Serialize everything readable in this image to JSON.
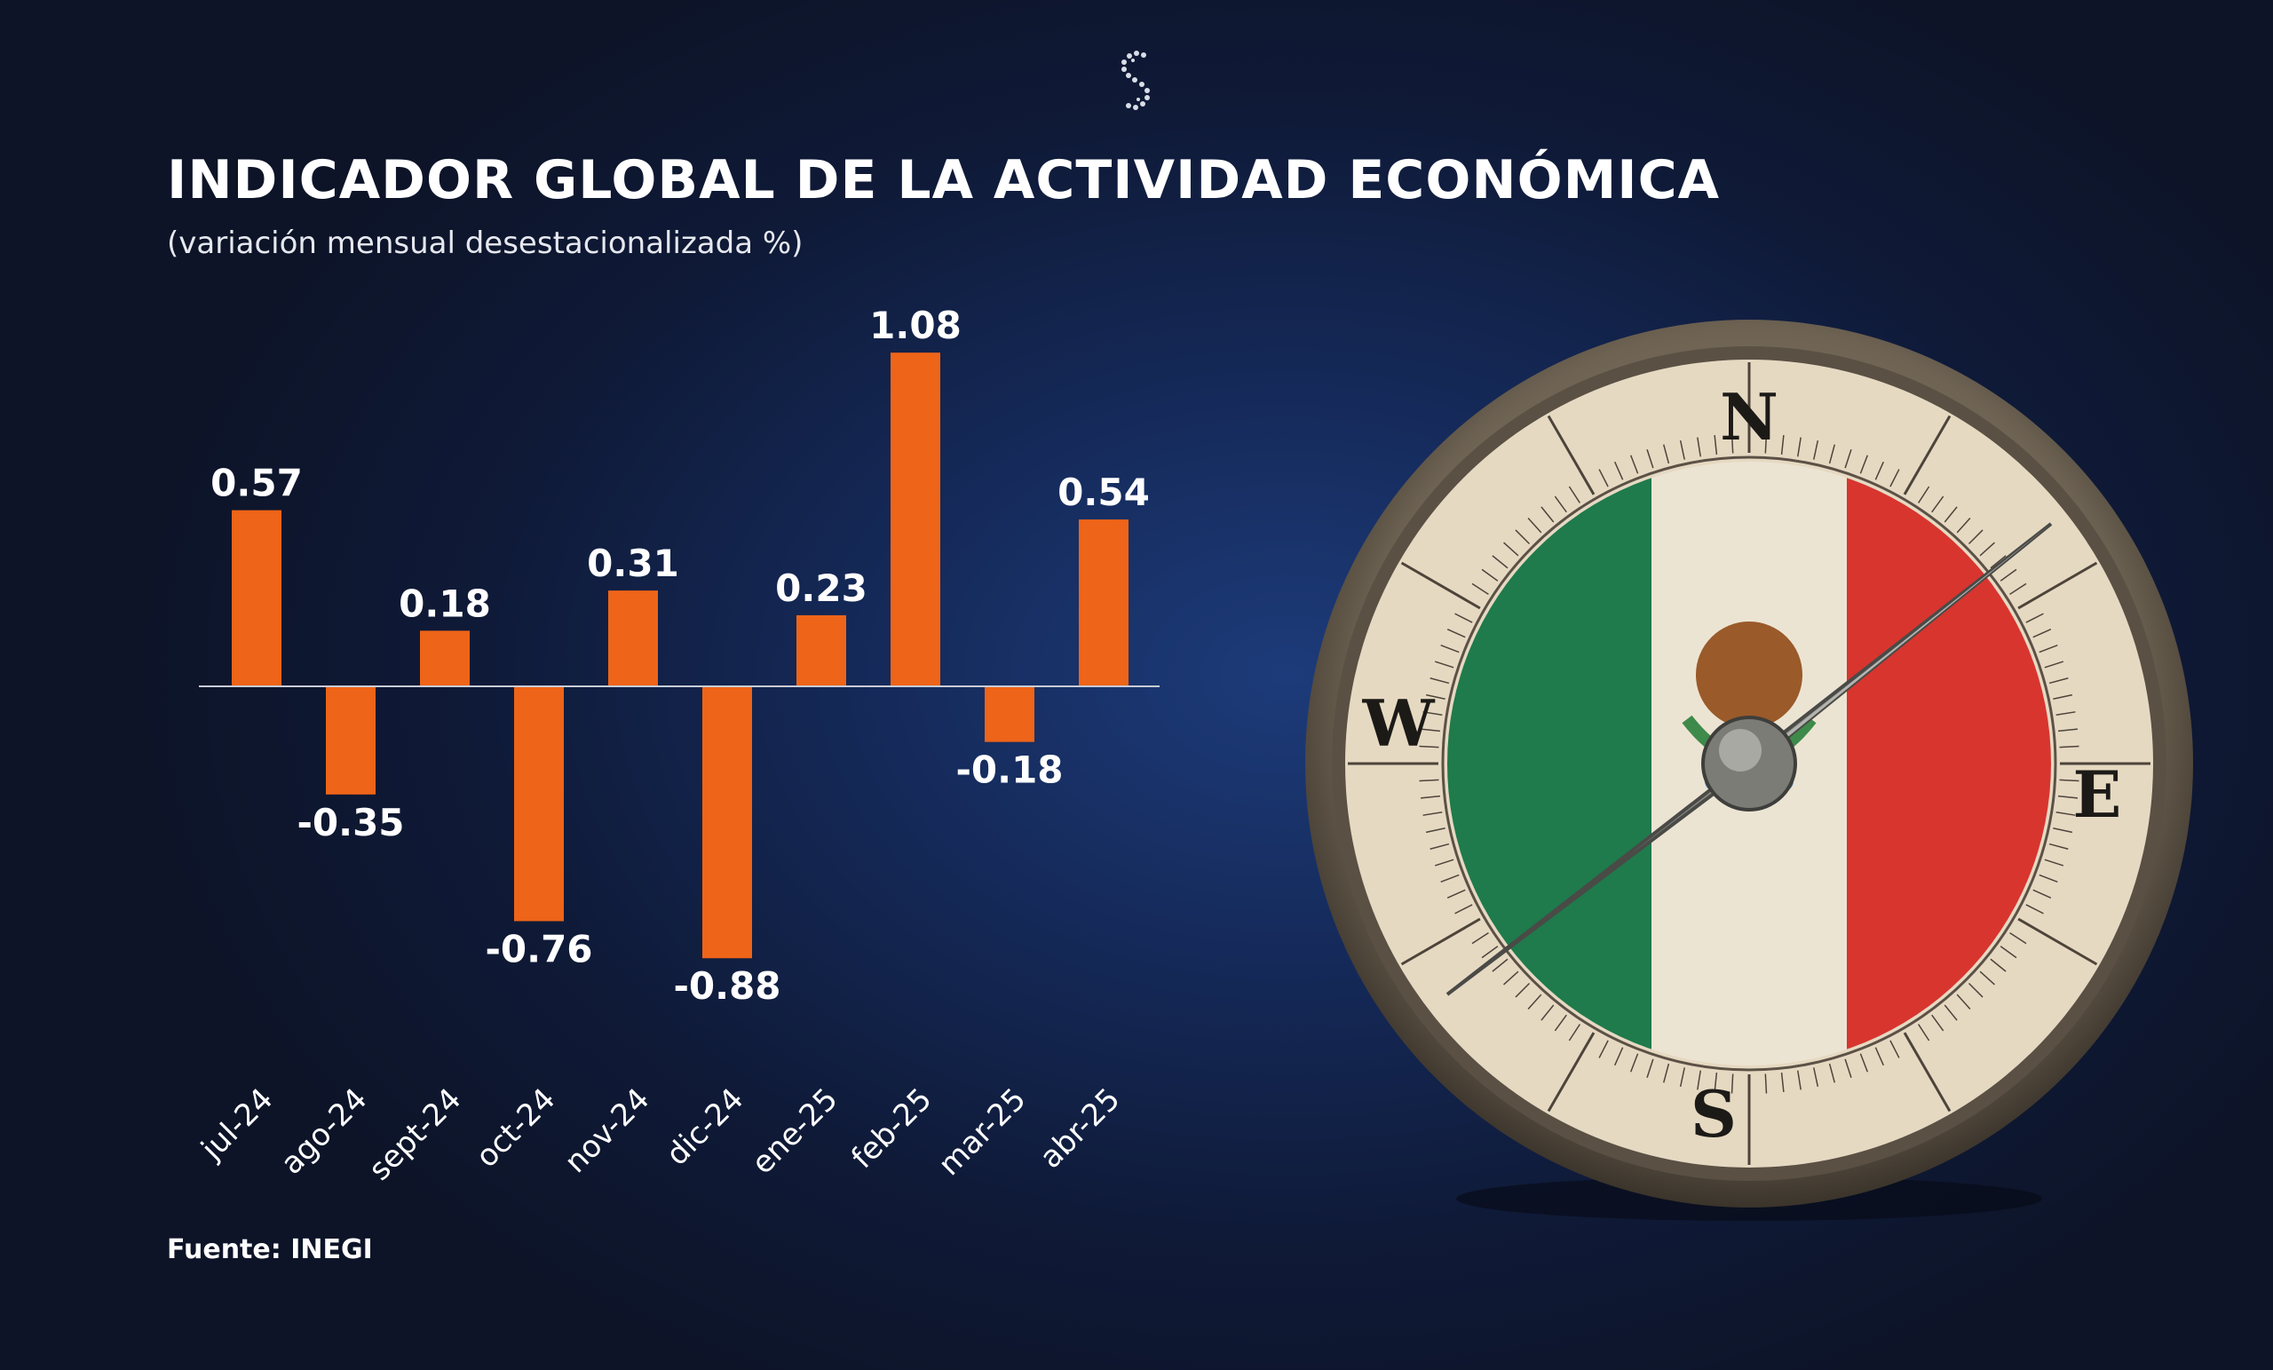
{
  "header": {
    "title": "INDICADOR GLOBAL DE LA ACTIVIDAD ECONÓMICA",
    "subtitle": "(variación mensual desestacionalizada %)"
  },
  "footer": {
    "source": "Fuente: INEGI"
  },
  "colors": {
    "bar": "#ee6418",
    "background": "#152a5a",
    "text": "#ffffff"
  },
  "icons": {
    "logo": "stylized-s-logo-icon",
    "illustration": "compass-mexican-flag-icon"
  },
  "compass": {
    "north": "N",
    "south": "S",
    "east": "E",
    "west": "W"
  },
  "chart_data": {
    "type": "bar",
    "title": "INDICADOR GLOBAL DE LA ACTIVIDAD ECONÓMICA",
    "subtitle": "(variación mensual desestacionalizada %)",
    "categories": [
      "jul-24",
      "ago-24",
      "sept-24",
      "oct-24",
      "nov-24",
      "dic-24",
      "ene-25",
      "feb-25",
      "mar-25",
      "abr-25"
    ],
    "values": [
      0.57,
      -0.35,
      0.18,
      -0.76,
      0.31,
      -0.88,
      0.23,
      1.08,
      -0.18,
      0.54
    ],
    "labels": [
      "0.57",
      "-0.35",
      "0.18",
      "-0.76",
      "0.31",
      "-0.88",
      "0.23",
      "1.08",
      "-0.18",
      "0.54"
    ],
    "xlabel": "",
    "ylabel": "",
    "grid": false,
    "legend": "none"
  }
}
